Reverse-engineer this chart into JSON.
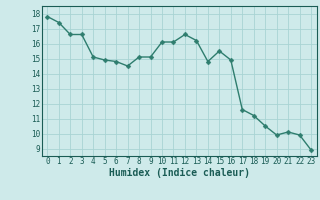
{
  "x": [
    0,
    1,
    2,
    3,
    4,
    5,
    6,
    7,
    8,
    9,
    10,
    11,
    12,
    13,
    14,
    15,
    16,
    17,
    18,
    19,
    20,
    21,
    22,
    23
  ],
  "y": [
    17.8,
    17.4,
    16.6,
    16.6,
    15.1,
    14.9,
    14.8,
    14.5,
    15.1,
    15.1,
    16.1,
    16.1,
    16.6,
    16.2,
    14.8,
    15.5,
    14.9,
    11.6,
    11.2,
    10.5,
    9.9,
    10.1,
    9.9,
    8.9
  ],
  "line_color": "#2e7d6e",
  "marker": "D",
  "markersize": 2.5,
  "linewidth": 1.0,
  "bg_color": "#ceeaea",
  "plot_bg_color": "#ceeaea",
  "grid_color": "#a8d4d4",
  "xlabel": "Humidex (Indice chaleur)",
  "xlim": [
    -0.5,
    23.5
  ],
  "ylim": [
    8.5,
    18.5
  ],
  "yticks": [
    9,
    10,
    11,
    12,
    13,
    14,
    15,
    16,
    17,
    18
  ],
  "xticks": [
    0,
    1,
    2,
    3,
    4,
    5,
    6,
    7,
    8,
    9,
    10,
    11,
    12,
    13,
    14,
    15,
    16,
    17,
    18,
    19,
    20,
    21,
    22,
    23
  ],
  "tick_fontsize": 5.5,
  "xlabel_fontsize": 7,
  "label_color": "#1a5c55",
  "spine_color": "#1a5c55"
}
